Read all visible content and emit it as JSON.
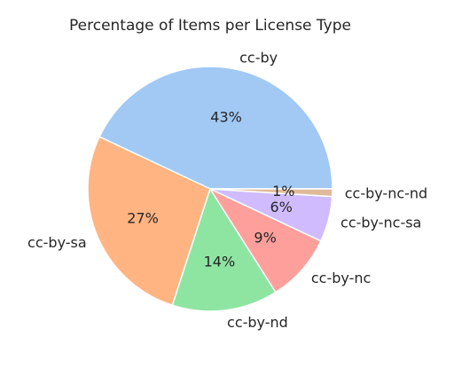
{
  "chart_data": {
    "type": "pie",
    "title": "Percentage of Items per License Type",
    "slices": [
      {
        "label": "cc-by",
        "value": 43,
        "pct_label": "43%",
        "color": "#a1c9f4"
      },
      {
        "label": "cc-by-sa",
        "value": 27,
        "pct_label": "27%",
        "color": "#ffb482"
      },
      {
        "label": "cc-by-nd",
        "value": 14,
        "pct_label": "14%",
        "color": "#8de5a1"
      },
      {
        "label": "cc-by-nc",
        "value": 9,
        "pct_label": "9%",
        "color": "#ff9f9b"
      },
      {
        "label": "cc-by-nc-sa",
        "value": 6,
        "pct_label": "6%",
        "color": "#d0bbff"
      },
      {
        "label": "cc-by-nc-nd",
        "value": 1,
        "pct_label": "1%",
        "color": "#debb9b"
      }
    ],
    "start_angle_deg": 0,
    "direction": "counterclockwise",
    "legend": "none"
  }
}
